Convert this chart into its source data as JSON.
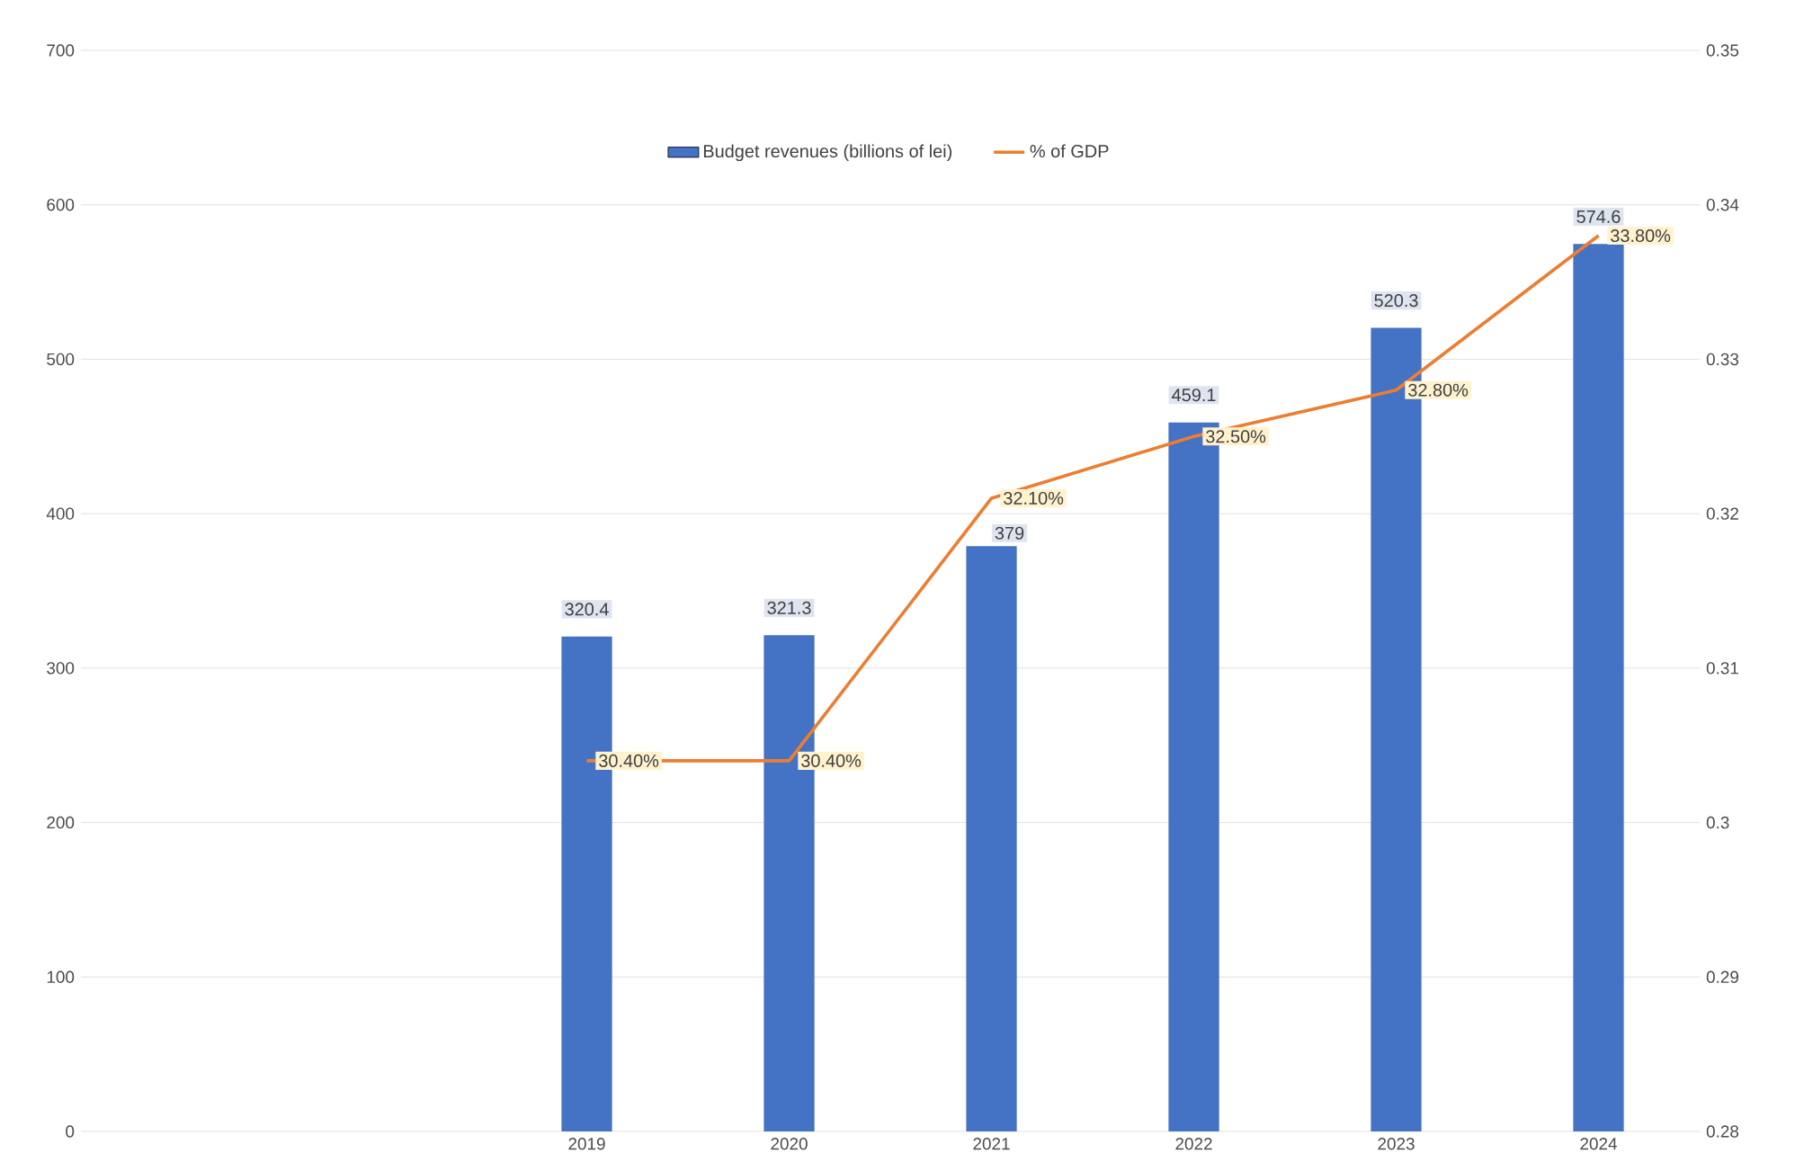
{
  "chart_data": {
    "type": "bar",
    "categories": [
      null,
      null,
      "2019",
      "2020",
      "2021",
      "2022",
      "2023",
      "2024"
    ],
    "series": [
      {
        "name": "Budget revenues (billions of lei)",
        "color": "#4472c4",
        "values": [
          null,
          null,
          320.4,
          321.3,
          379,
          459.1,
          520.3,
          574.6
        ],
        "value_labels": [
          null,
          null,
          "320.4",
          "321.3",
          "379",
          "459.1",
          "520.3",
          "574.6"
        ]
      },
      {
        "name": "% of GDP",
        "type": "line",
        "axis": "y2",
        "color": "#ed7d31",
        "values": [
          null,
          null,
          0.304,
          0.304,
          0.321,
          0.325,
          0.328,
          0.338
        ],
        "value_labels": [
          null,
          null,
          "30.40%",
          "30.40%",
          "32.10%",
          "32.50%",
          "32.80%",
          "33.80%"
        ]
      }
    ],
    "ylim": [
      0,
      700
    ],
    "yticks": [
      0,
      100,
      200,
      300,
      400,
      500,
      600,
      700
    ],
    "y2lim": [
      0.28,
      0.35
    ],
    "y2ticks": [
      0.28,
      0.29,
      0.3,
      0.31,
      0.32,
      0.33,
      0.34,
      0.35
    ],
    "grid": "y",
    "legend": "top"
  }
}
